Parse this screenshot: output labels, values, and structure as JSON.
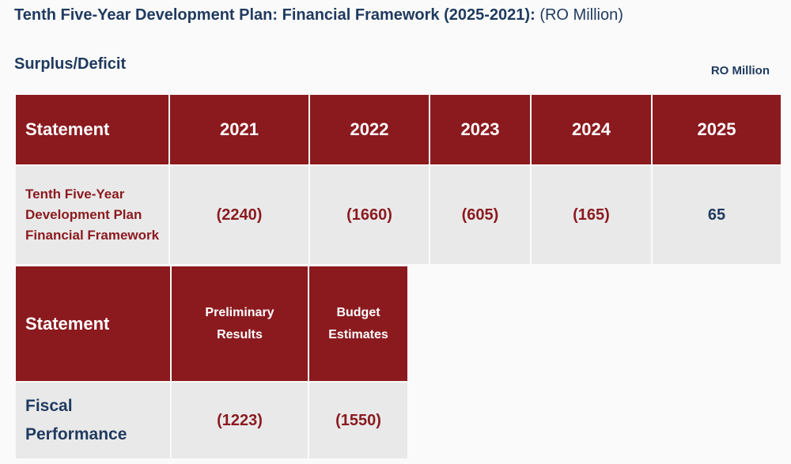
{
  "title": {
    "main": "Tenth Five-Year Development Plan: Financial Framework (2025-2021):",
    "unit": "(RO Million)"
  },
  "subtitle": "Surplus/Deficit",
  "unit_note": "RO Million",
  "table1": {
    "headers": [
      "Statement",
      "2021",
      "2022",
      "2023",
      "2024",
      "2025"
    ],
    "row": {
      "label": "Tenth Five-Year Development Plan Financial Framework",
      "values": [
        "(2240)",
        "(1660)",
        "(605)",
        "(165)",
        "65"
      ]
    }
  },
  "table2": {
    "headers": [
      "Statement",
      "Preliminary Results",
      "Budget Estimates"
    ],
    "row": {
      "label": "Fiscal Performance",
      "values": [
        "(1223)",
        "(1550)"
      ]
    }
  },
  "colors": {
    "header_bg": "#8b1a1f",
    "cell_bg": "#e9e9e9",
    "negative": "#8b1a1f",
    "positive": "#1f3a5f"
  }
}
